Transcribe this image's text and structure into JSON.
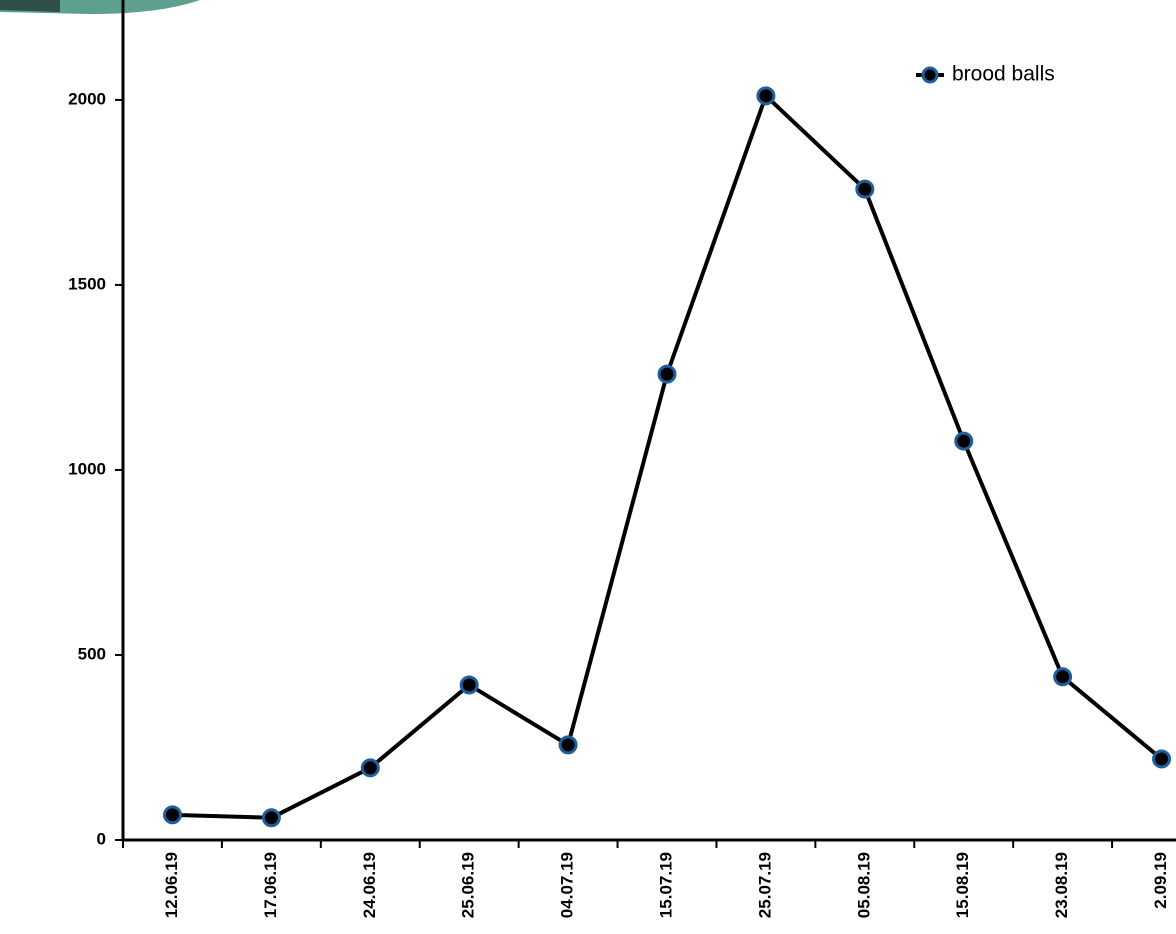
{
  "chart_data": {
    "type": "line",
    "categories": [
      "12.06.19",
      "17.06.19",
      "24.06.19",
      "25.06.19",
      "04.07.19",
      "15.07.19",
      "25.07.19",
      "05.08.19",
      "15.08.19",
      "23.08.19",
      "2.09.19"
    ],
    "series": [
      {
        "name": "brood balls",
        "color": "#000000",
        "marker_edge_color": "#1f5f9f",
        "values": [
          68,
          60,
          195,
          419,
          257,
          1259,
          2011,
          1759,
          1078,
          441,
          219
        ]
      }
    ],
    "ylim": [
      0,
      2270
    ],
    "yticks": [
      0,
      500,
      1000,
      1500,
      2000
    ],
    "grid": false,
    "legend": "upper right"
  }
}
